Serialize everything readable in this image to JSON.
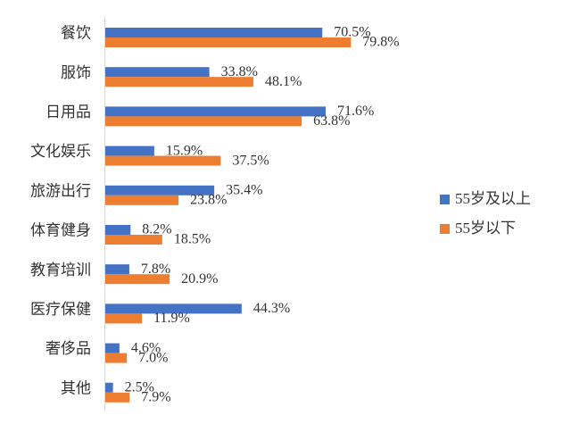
{
  "chart_data": {
    "type": "bar",
    "orientation": "horizontal",
    "categories": [
      "餐饮",
      "服饰",
      "日用品",
      "文化娱乐",
      "旅游出行",
      "体育健身",
      "教育培训",
      "医疗保健",
      "奢侈品",
      "其他"
    ],
    "series": [
      {
        "name": "55岁及以上",
        "color": "#4472C4",
        "values": [
          70.5,
          33.8,
          71.6,
          15.9,
          35.4,
          8.2,
          7.8,
          44.3,
          4.6,
          2.5
        ],
        "labels": [
          "70.5%",
          "33.8%",
          "71.6%",
          "15.9%",
          "35.4%",
          "8.2%",
          "7.8%",
          "44.3%",
          "4.6%",
          "2.5%"
        ]
      },
      {
        "name": "55岁以下",
        "color": "#ED7D31",
        "values": [
          79.8,
          48.1,
          63.8,
          37.5,
          23.8,
          18.5,
          20.9,
          11.9,
          7.0,
          7.9
        ],
        "labels": [
          "79.8%",
          "48.1%",
          "63.8%",
          "37.5%",
          "23.8%",
          "18.5%",
          "20.9%",
          "11.9%",
          "7.0%",
          "7.9%"
        ]
      }
    ],
    "xlim": [
      0,
      100
    ],
    "grid": false,
    "legend_position": "right"
  }
}
